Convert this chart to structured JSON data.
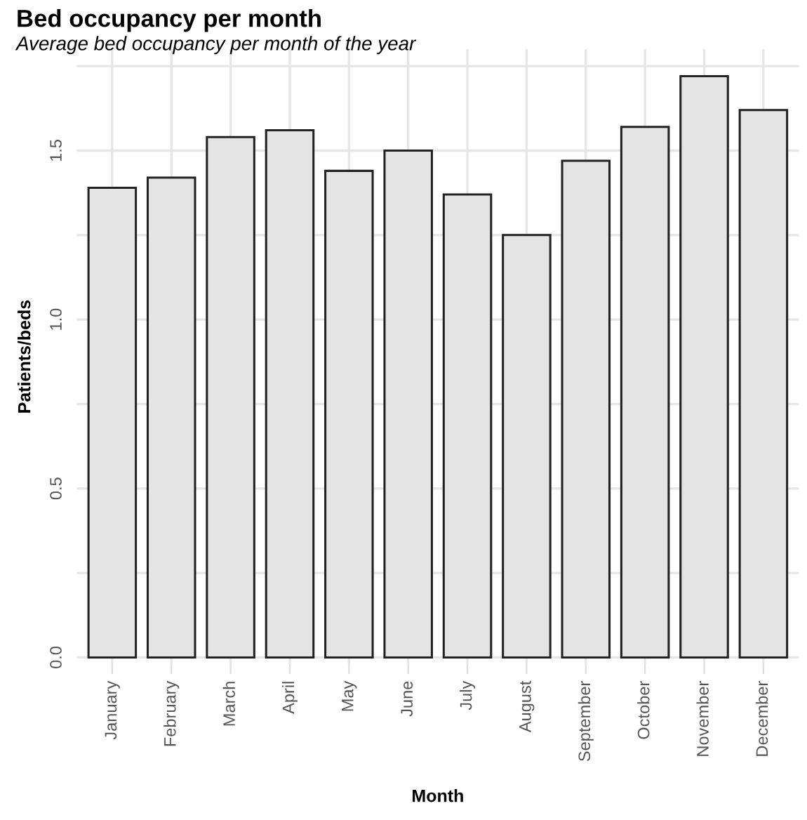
{
  "chart_data": {
    "type": "bar",
    "title": "Bed occupancy per month",
    "subtitle": "Average bed occupancy per month of the year",
    "xlabel": "Month",
    "ylabel": "Patients/beds",
    "categories": [
      "January",
      "February",
      "March",
      "April",
      "May",
      "June",
      "July",
      "August",
      "September",
      "October",
      "November",
      "December"
    ],
    "values": [
      1.39,
      1.42,
      1.54,
      1.56,
      1.44,
      1.5,
      1.37,
      1.25,
      1.47,
      1.57,
      1.72,
      1.62
    ],
    "color": "#e4e4e4",
    "ylim": [
      -0.02,
      1.8
    ],
    "yticks": [
      {
        "value": 0,
        "label": "0.0"
      },
      {
        "value": 0.25,
        "label": null
      },
      0.5,
      {
        "value": 0.75,
        "label": null
      },
      {
        "value": 1,
        "label": "1.0"
      },
      {
        "value": 1.25,
        "label": null
      },
      1.5,
      {
        "value": 1.75,
        "label": null
      }
    ],
    "grid": true,
    "legend": false
  }
}
